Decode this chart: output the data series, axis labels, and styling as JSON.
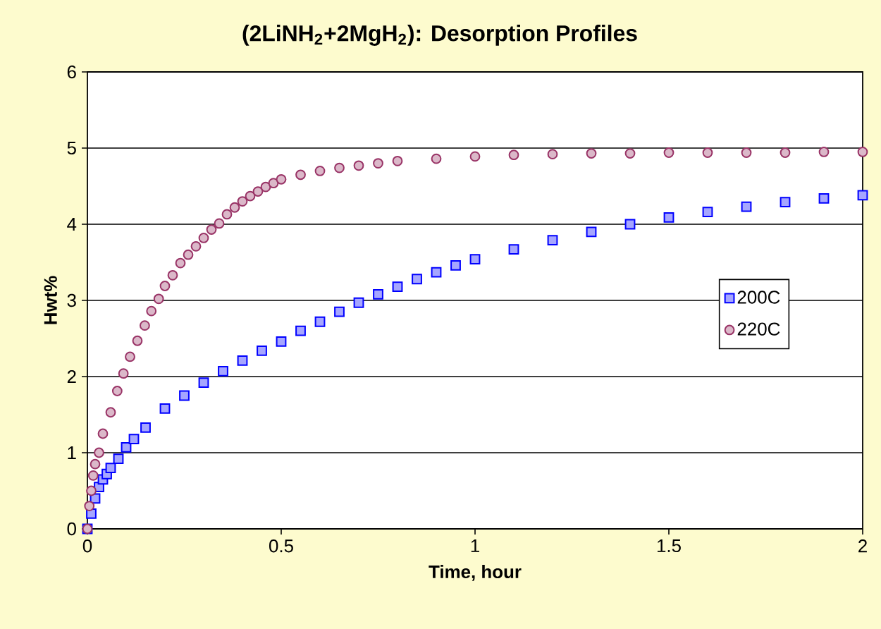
{
  "chart_data": {
    "type": "scatter",
    "title": "(2LiNH$_{2}$+2MgH$_{2}$): Desorption Profiles",
    "xlabel": "Time, hour",
    "ylabel": "Hwt%",
    "xlim": [
      0,
      2
    ],
    "xticks": [
      0,
      0.5,
      1,
      1.5,
      2
    ],
    "ylim": [
      0,
      6
    ],
    "yticks": [
      0,
      1,
      2,
      3,
      4,
      5,
      6
    ],
    "grid": "y",
    "legend": "right",
    "series": [
      {
        "name": "200C",
        "color": "#0000ff",
        "marker": "square",
        "x": [
          0,
          0.01,
          0.02,
          0.03,
          0.04,
          0.05,
          0.06,
          0.08,
          0.1,
          0.12,
          0.15,
          0.2,
          0.25,
          0.3,
          0.35,
          0.4,
          0.45,
          0.5,
          0.55,
          0.6,
          0.65,
          0.7,
          0.75,
          0.8,
          0.85,
          0.9,
          0.95,
          1.0,
          1.1,
          1.2,
          1.3,
          1.4,
          1.5,
          1.6,
          1.7,
          1.8,
          1.9,
          2.0
        ],
        "values": [
          0,
          0.2,
          0.4,
          0.55,
          0.65,
          0.72,
          0.8,
          0.92,
          1.07,
          1.18,
          1.33,
          1.58,
          1.75,
          1.92,
          2.07,
          2.21,
          2.34,
          2.46,
          2.6,
          2.72,
          2.85,
          2.97,
          3.08,
          3.18,
          3.28,
          3.37,
          3.46,
          3.54,
          3.67,
          3.79,
          3.9,
          4.0,
          4.09,
          4.16,
          4.23,
          4.29,
          4.34,
          4.38
        ]
      },
      {
        "name": "220C",
        "color": "#993366",
        "marker": "circle",
        "x": [
          0,
          0.005,
          0.01,
          0.015,
          0.02,
          0.03,
          0.04,
          0.06,
          0.077,
          0.093,
          0.11,
          0.129,
          0.148,
          0.165,
          0.184,
          0.2,
          0.22,
          0.24,
          0.26,
          0.28,
          0.3,
          0.32,
          0.34,
          0.36,
          0.38,
          0.4,
          0.42,
          0.44,
          0.46,
          0.48,
          0.5,
          0.55,
          0.6,
          0.65,
          0.7,
          0.75,
          0.8,
          0.9,
          1.0,
          1.1,
          1.2,
          1.3,
          1.4,
          1.5,
          1.6,
          1.7,
          1.8,
          1.9,
          2.0
        ],
        "values": [
          0,
          0.3,
          0.5,
          0.7,
          0.85,
          1.0,
          1.25,
          1.53,
          1.81,
          2.04,
          2.26,
          2.47,
          2.67,
          2.86,
          3.02,
          3.19,
          3.33,
          3.49,
          3.6,
          3.71,
          3.82,
          3.93,
          4.01,
          4.13,
          4.22,
          4.3,
          4.37,
          4.43,
          4.49,
          4.54,
          4.59,
          4.65,
          4.7,
          4.74,
          4.77,
          4.8,
          4.83,
          4.86,
          4.89,
          4.91,
          4.92,
          4.93,
          4.93,
          4.94,
          4.94,
          4.94,
          4.94,
          4.95,
          4.95
        ]
      }
    ]
  }
}
